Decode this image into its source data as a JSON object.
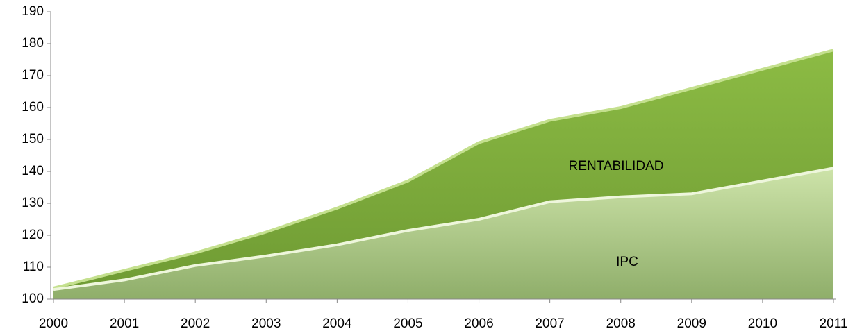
{
  "chart_data": {
    "type": "area",
    "x": [
      2000,
      2001,
      2002,
      2003,
      2004,
      2005,
      2006,
      2007,
      2008,
      2009,
      2010,
      2011
    ],
    "xlim": [
      2000,
      2011
    ],
    "xticks": [
      2000,
      2001,
      2002,
      2003,
      2004,
      2005,
      2006,
      2007,
      2008,
      2009,
      2010,
      2011
    ],
    "ylim": [
      100,
      190
    ],
    "yticks": [
      100,
      110,
      120,
      130,
      140,
      150,
      160,
      170,
      180,
      190
    ],
    "series": [
      {
        "name": "RENTABILIDAD",
        "color": "#76a337",
        "values": [
          103.5,
          109,
          114.5,
          121,
          128.5,
          137,
          149,
          156,
          160,
          166,
          172,
          178
        ]
      },
      {
        "name": "IPC",
        "color": "#b9d48e",
        "values": [
          103,
          106,
          110.5,
          113.5,
          117,
          121.5,
          125,
          130.5,
          132,
          133,
          137,
          141
        ]
      }
    ]
  }
}
